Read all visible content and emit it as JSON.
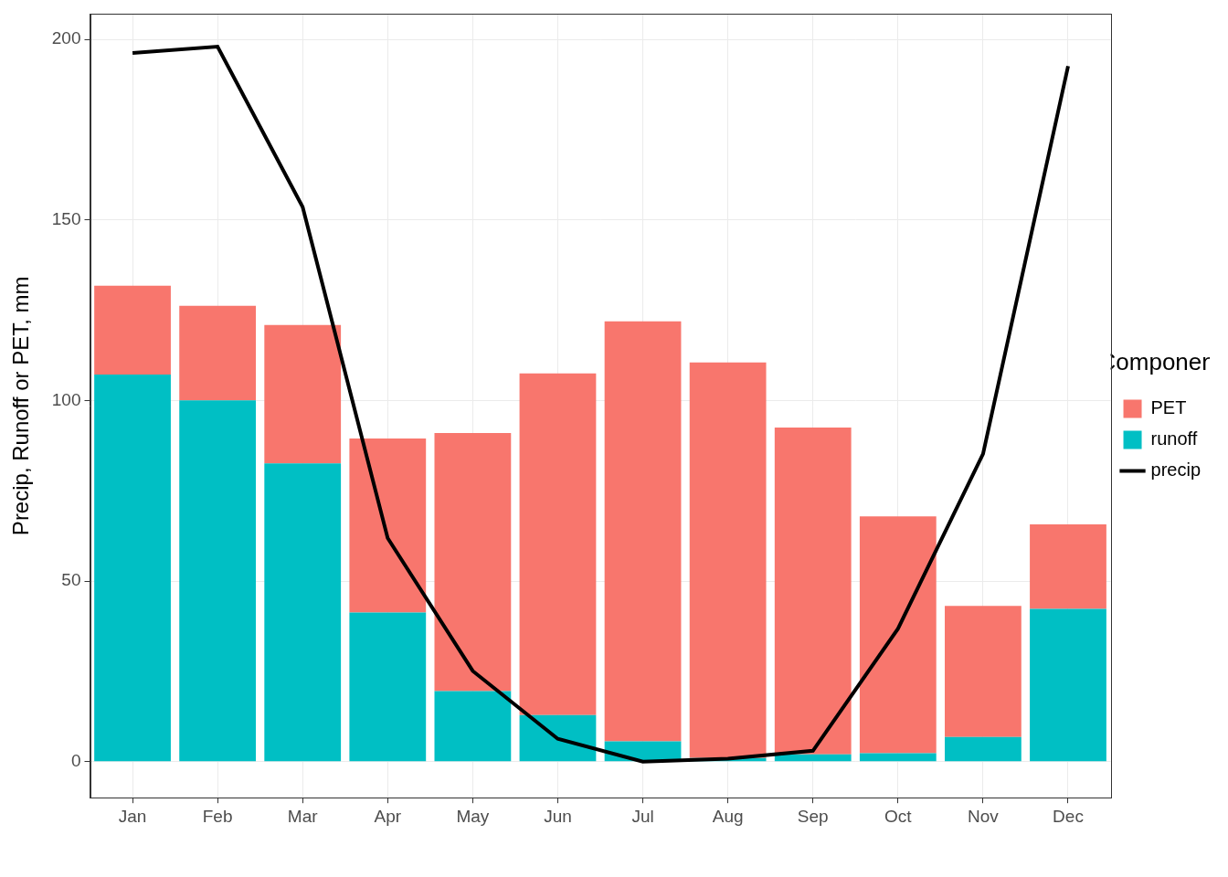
{
  "chart_data": {
    "type": "bar",
    "stacked": true,
    "y_label": "Precip, Runoff or PET, mm",
    "legend_title": "Component",
    "legend": "right",
    "grid": true,
    "categories": [
      "Jan",
      "Feb",
      "Mar",
      "Apr",
      "May",
      "Jun",
      "Jul",
      "Aug",
      "Sep",
      "Oct",
      "Nov",
      "Dec"
    ],
    "series": [
      {
        "name": "PET",
        "type": "bar",
        "color": "#F8766D",
        "values": [
          24.6,
          26.2,
          38.3,
          48.2,
          71.5,
          94.6,
          116.3,
          109.5,
          90.5,
          65.6,
          36.3,
          23.4
        ]
      },
      {
        "name": "runoff",
        "type": "bar",
        "color": "#00BFC4",
        "values": [
          107.2,
          100,
          82.6,
          41.3,
          19.5,
          12.9,
          5.6,
          1,
          2,
          2.3,
          6.8,
          42.3
        ]
      },
      {
        "name": "precip",
        "type": "line",
        "color": "#000000",
        "line_style": "solid",
        "values": [
          196.2,
          198,
          153.6,
          61.9,
          25.1,
          6.3,
          0,
          0.8,
          3,
          36.8,
          85.2,
          192.6
        ]
      }
    ],
    "ylim": [
      -10,
      207
    ],
    "yticks": [
      0,
      50,
      100,
      150,
      200
    ]
  }
}
